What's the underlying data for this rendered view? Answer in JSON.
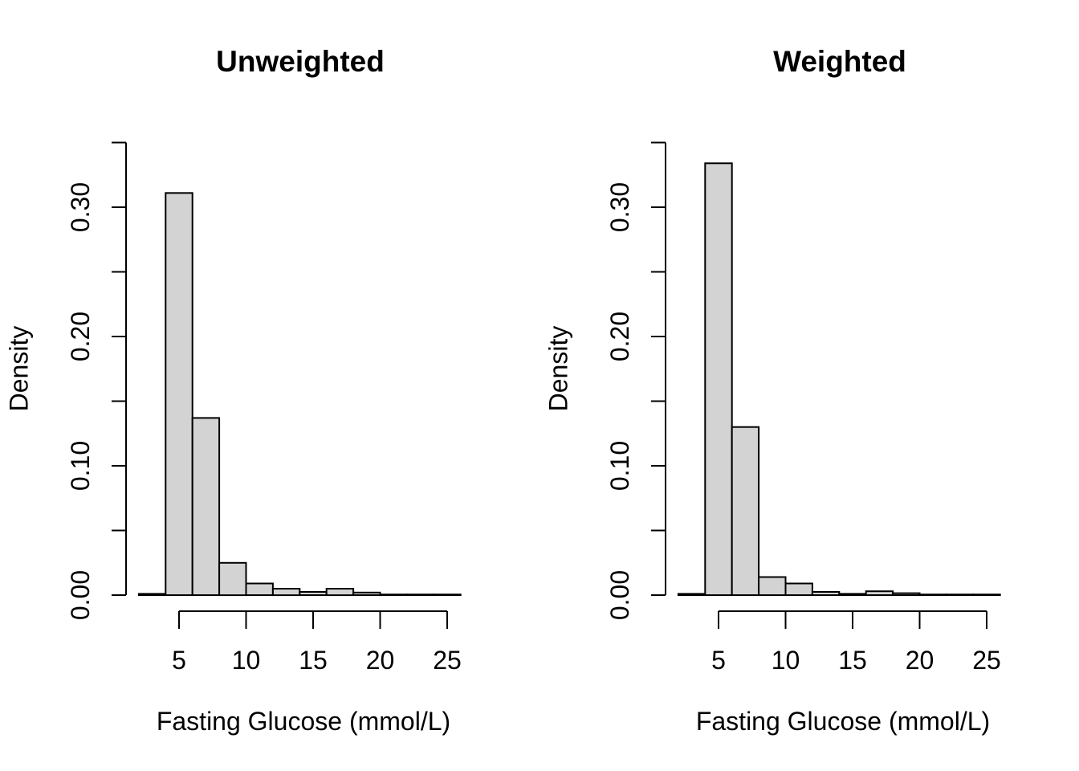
{
  "figure": {
    "background": "#ffffff",
    "bar_fill": "#d3d3d3",
    "bar_stroke": "#000000",
    "axis_color": "#000000",
    "text_color": "#000000"
  },
  "chart_data": [
    {
      "type": "bar",
      "subtype": "histogram",
      "title": "Unweighted",
      "xlabel": "Fasting Glucose (mmol/L)",
      "ylabel": "Density",
      "xlim": [
        2,
        26
      ],
      "ylim": [
        0,
        0.35
      ],
      "grid": false,
      "legend": null,
      "bin_breaks": [
        2,
        4,
        6,
        8,
        10,
        12,
        14,
        16,
        18,
        20,
        22,
        24,
        26
      ],
      "densities": [
        0.001,
        0.311,
        0.137,
        0.025,
        0.009,
        0.005,
        0.0025,
        0.005,
        0.002,
        0.0005,
        0.0003,
        0.0003
      ],
      "x_ticks": [
        {
          "v": 5,
          "label": "5"
        },
        {
          "v": 10,
          "label": "10"
        },
        {
          "v": 15,
          "label": "15"
        },
        {
          "v": 20,
          "label": "20"
        },
        {
          "v": 25,
          "label": "25"
        }
      ],
      "y_ticks": [
        {
          "v": 0.0,
          "label": "0.00"
        },
        {
          "v": 0.05,
          "label": ""
        },
        {
          "v": 0.1,
          "label": "0.10"
        },
        {
          "v": 0.15,
          "label": ""
        },
        {
          "v": 0.2,
          "label": "0.20"
        },
        {
          "v": 0.25,
          "label": ""
        },
        {
          "v": 0.3,
          "label": "0.30"
        },
        {
          "v": 0.35,
          "label": ""
        }
      ]
    },
    {
      "type": "bar",
      "subtype": "histogram",
      "title": "Weighted",
      "xlabel": "Fasting Glucose (mmol/L)",
      "ylabel": "Density",
      "xlim": [
        2,
        26
      ],
      "ylim": [
        0,
        0.35
      ],
      "grid": false,
      "legend": null,
      "bin_breaks": [
        2,
        4,
        6,
        8,
        10,
        12,
        14,
        16,
        18,
        20,
        22,
        24,
        26
      ],
      "densities": [
        0.001,
        0.334,
        0.13,
        0.014,
        0.009,
        0.0025,
        0.001,
        0.003,
        0.0015,
        0.0005,
        0.0003,
        0.0003
      ],
      "x_ticks": [
        {
          "v": 5,
          "label": "5"
        },
        {
          "v": 10,
          "label": "10"
        },
        {
          "v": 15,
          "label": "15"
        },
        {
          "v": 20,
          "label": "20"
        },
        {
          "v": 25,
          "label": "25"
        }
      ],
      "y_ticks": [
        {
          "v": 0.0,
          "label": "0.00"
        },
        {
          "v": 0.05,
          "label": ""
        },
        {
          "v": 0.1,
          "label": "0.10"
        },
        {
          "v": 0.15,
          "label": ""
        },
        {
          "v": 0.2,
          "label": "0.20"
        },
        {
          "v": 0.25,
          "label": ""
        },
        {
          "v": 0.3,
          "label": "0.30"
        },
        {
          "v": 0.35,
          "label": ""
        }
      ]
    }
  ]
}
